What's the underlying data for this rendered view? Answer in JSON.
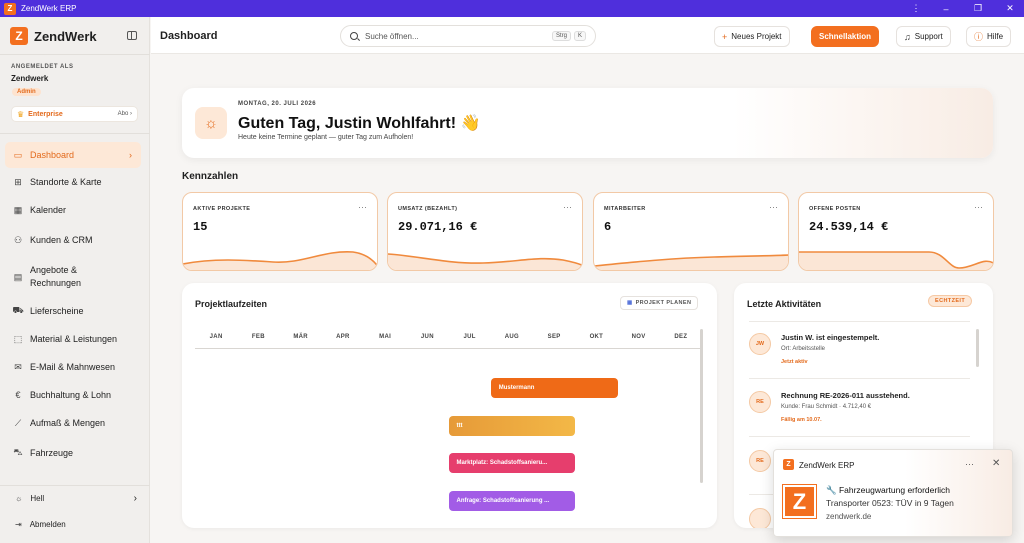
{
  "window": {
    "title": "ZendWerk ERP",
    "logo_letter": "Z",
    "controls": {
      "more": "⋮",
      "minimize": "–",
      "restore": "❐",
      "close": "✕"
    }
  },
  "sidebar": {
    "brand": "ZendWerk",
    "logo_letter": "Z",
    "login_caption": "ANGEMELDET ALS",
    "user": "Zendwerk",
    "role_badge": "Admin",
    "plan": {
      "name": "Enterprise",
      "link": "Abo ›"
    },
    "items": [
      {
        "label": "Dashboard",
        "icon": "monitor-icon",
        "glyph": "▭",
        "active": true
      },
      {
        "label": "Standorte & Karte",
        "icon": "map-icon",
        "glyph": "⊞"
      },
      {
        "label": "Kalender",
        "icon": "calendar-icon",
        "glyph": "▦"
      },
      {
        "label": "Kunden & CRM",
        "icon": "users-icon",
        "glyph": "⚇"
      },
      {
        "label": "Angebote & Rechnungen",
        "icon": "document-icon",
        "glyph": "▤"
      },
      {
        "label": "Lieferscheine",
        "icon": "truck-icon",
        "glyph": "⛟"
      },
      {
        "label": "Material & Leistungen",
        "icon": "package-icon",
        "glyph": "⬚"
      },
      {
        "label": "E-Mail & Mahnwesen",
        "icon": "mail-icon",
        "glyph": "✉"
      },
      {
        "label": "Buchhaltung & Lohn",
        "icon": "euro-icon",
        "glyph": "€"
      },
      {
        "label": "Aufmaß & Mengen",
        "icon": "ruler-icon",
        "glyph": "⟋"
      },
      {
        "label": "Fahrzeuge",
        "icon": "car-icon",
        "glyph": "⛍"
      }
    ],
    "theme_label": "Hell",
    "logout_label": "Abmelden"
  },
  "topbar": {
    "title": "Dashboard",
    "search_placeholder": "Suche öffnen...",
    "search_keys": [
      "Strg",
      "K"
    ],
    "new_project": "Neues Projekt",
    "quick_action": "Schnellaktion",
    "support": "Support",
    "help": "Hilfe"
  },
  "welcome": {
    "date": "MONTAG, 20. JULI 2026",
    "greeting": "Guten Tag, Justin Wohlfahrt! 👋",
    "subtitle": "Heute keine Termine geplant — guter Tag zum Aufholen!"
  },
  "kpis_title": "Kennzahlen",
  "kpis": [
    {
      "label": "AKTIVE PROJEKTE",
      "value": "15"
    },
    {
      "label": "UMSATZ (BEZAHLT)",
      "value": "29.071,16 €"
    },
    {
      "label": "MITARBEITER",
      "value": "6"
    },
    {
      "label": "OFFENE POSTEN",
      "value": "24.539,14 €"
    }
  ],
  "gantt": {
    "title": "Projektlaufzeiten",
    "plan_button": "PROJEKT PLANEN",
    "months": [
      "JAN",
      "FEB",
      "MÄR",
      "APR",
      "MAI",
      "JUN",
      "JUL",
      "AUG",
      "SEP",
      "OKT",
      "NOV",
      "DEZ"
    ],
    "bars": [
      {
        "label": "Mustermann",
        "start_month": 7,
        "end_month": 10,
        "color": "#ef6a17"
      },
      {
        "label": "ttt",
        "start_month": 6,
        "end_month": 9,
        "color": "#eea33c"
      },
      {
        "label": "Marktplatz: Schadstoffsanieru...",
        "start_month": 6,
        "end_month": 9,
        "color": "#e63e6d"
      },
      {
        "label": "Anfrage: Schadstoffsanierung ...",
        "start_month": 6,
        "end_month": 9,
        "color": "#a25ce6"
      }
    ]
  },
  "activities": {
    "title": "Letzte Aktivitäten",
    "live_badge": "ECHTZEIT",
    "items": [
      {
        "avatar": "JW",
        "title": "Justin W. ist eingestempelt.",
        "subtitle": "Ort: Arbeitsstelle",
        "meta": "Jetzt aktiv"
      },
      {
        "avatar": "RE",
        "title": "Rechnung RE-2026-011 ausstehend.",
        "subtitle": "Kunde: Frau Schmidt · 4.712,40 €",
        "meta": "Fällig am 10.07."
      },
      {
        "avatar": "RE",
        "title": "",
        "subtitle": "",
        "meta": ""
      }
    ]
  },
  "toast": {
    "app": "ZendWerk ERP",
    "more": "···",
    "close": "✕",
    "title": "🔧 Fahrzeugwartung erforderlich",
    "body": "Transporter 0523: TÜV in 9 Tagen",
    "source": "zendwerk.de"
  }
}
